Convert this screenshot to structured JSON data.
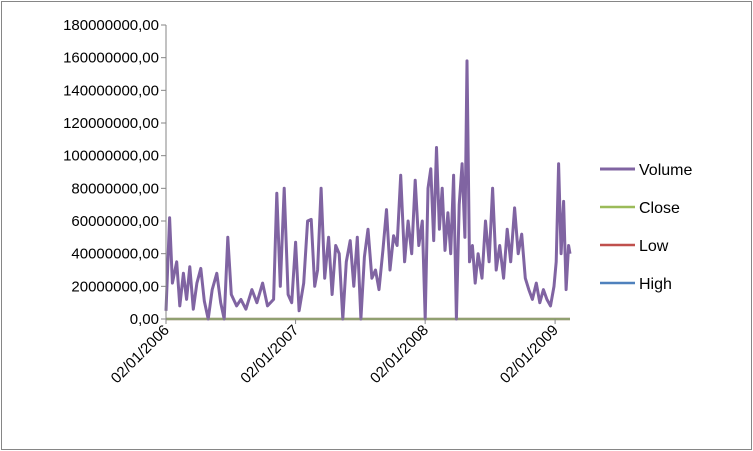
{
  "chart_data": {
    "type": "line",
    "title": "",
    "xlabel": "",
    "ylabel": "",
    "ylim": [
      0,
      180000000
    ],
    "y_ticks": [
      0,
      20000000,
      40000000,
      60000000,
      80000000,
      100000000,
      120000000,
      140000000,
      160000000,
      180000000
    ],
    "y_tick_labels": [
      "0,00",
      "20000000,00",
      "40000000,00",
      "60000000,00",
      "80000000,00",
      "100000000,00",
      "120000000,00",
      "140000000,00",
      "160000000,00",
      "180000000,00"
    ],
    "x_range": [
      "2006-01-02",
      "2009-02-13"
    ],
    "x_ticks": [
      "2006-01-02",
      "2007-01-02",
      "2008-01-02",
      "2009-01-02"
    ],
    "x_tick_labels": [
      "02/01/2006",
      "02/01/2007",
      "02/01/2008",
      "02/01/2009"
    ],
    "grid": {
      "horizontal": false,
      "vertical": false
    },
    "legend_position": "right",
    "series": [
      {
        "name": "Volume",
        "color": "#8064a2",
        "points": [
          [
            "2006-01-02",
            5000000
          ],
          [
            "2006-01-12",
            62000000
          ],
          [
            "2006-01-20",
            22000000
          ],
          [
            "2006-02-01",
            35000000
          ],
          [
            "2006-02-10",
            8000000
          ],
          [
            "2006-02-20",
            28000000
          ],
          [
            "2006-03-01",
            12000000
          ],
          [
            "2006-03-10",
            32000000
          ],
          [
            "2006-03-20",
            6000000
          ],
          [
            "2006-03-30",
            22000000
          ],
          [
            "2006-04-10",
            31000000
          ],
          [
            "2006-04-20",
            11000000
          ],
          [
            "2006-05-01",
            0
          ],
          [
            "2006-05-12",
            18000000
          ],
          [
            "2006-05-25",
            28000000
          ],
          [
            "2006-06-05",
            10000000
          ],
          [
            "2006-06-15",
            0
          ],
          [
            "2006-06-25",
            50000000
          ],
          [
            "2006-07-05",
            15000000
          ],
          [
            "2006-07-20",
            8000000
          ],
          [
            "2006-08-01",
            12000000
          ],
          [
            "2006-08-15",
            6000000
          ],
          [
            "2006-09-01",
            18000000
          ],
          [
            "2006-09-15",
            10000000
          ],
          [
            "2006-10-01",
            22000000
          ],
          [
            "2006-10-15",
            8000000
          ],
          [
            "2006-11-01",
            12000000
          ],
          [
            "2006-11-10",
            77000000
          ],
          [
            "2006-11-20",
            20000000
          ],
          [
            "2006-12-01",
            80000000
          ],
          [
            "2006-12-12",
            15000000
          ],
          [
            "2006-12-22",
            10000000
          ],
          [
            "2007-01-02",
            47000000
          ],
          [
            "2007-01-12",
            5000000
          ],
          [
            "2007-01-25",
            22000000
          ],
          [
            "2007-02-05",
            60000000
          ],
          [
            "2007-02-15",
            61000000
          ],
          [
            "2007-02-25",
            20000000
          ],
          [
            "2007-03-05",
            30000000
          ],
          [
            "2007-03-15",
            80000000
          ],
          [
            "2007-03-25",
            25000000
          ],
          [
            "2007-04-05",
            50000000
          ],
          [
            "2007-04-15",
            15000000
          ],
          [
            "2007-04-25",
            45000000
          ],
          [
            "2007-05-05",
            40000000
          ],
          [
            "2007-05-15",
            0
          ],
          [
            "2007-05-25",
            35000000
          ],
          [
            "2007-06-05",
            48000000
          ],
          [
            "2007-06-15",
            20000000
          ],
          [
            "2007-06-25",
            50000000
          ],
          [
            "2007-07-05",
            0
          ],
          [
            "2007-07-15",
            38000000
          ],
          [
            "2007-07-25",
            55000000
          ],
          [
            "2007-08-05",
            25000000
          ],
          [
            "2007-08-15",
            30000000
          ],
          [
            "2007-08-25",
            18000000
          ],
          [
            "2007-09-05",
            42000000
          ],
          [
            "2007-09-15",
            67000000
          ],
          [
            "2007-09-25",
            30000000
          ],
          [
            "2007-10-05",
            51000000
          ],
          [
            "2007-10-15",
            45000000
          ],
          [
            "2007-10-25",
            88000000
          ],
          [
            "2007-11-05",
            35000000
          ],
          [
            "2007-11-15",
            60000000
          ],
          [
            "2007-11-25",
            40000000
          ],
          [
            "2007-12-05",
            85000000
          ],
          [
            "2007-12-15",
            45000000
          ],
          [
            "2007-12-25",
            60000000
          ],
          [
            "2008-01-02",
            0
          ],
          [
            "2008-01-10",
            80000000
          ],
          [
            "2008-01-18",
            92000000
          ],
          [
            "2008-01-26",
            48000000
          ],
          [
            "2008-02-03",
            105000000
          ],
          [
            "2008-02-11",
            55000000
          ],
          [
            "2008-02-19",
            80000000
          ],
          [
            "2008-02-27",
            42000000
          ],
          [
            "2008-03-06",
            65000000
          ],
          [
            "2008-03-14",
            40000000
          ],
          [
            "2008-03-22",
            88000000
          ],
          [
            "2008-03-30",
            0
          ],
          [
            "2008-04-07",
            70000000
          ],
          [
            "2008-04-15",
            95000000
          ],
          [
            "2008-04-23",
            50000000
          ],
          [
            "2008-04-29",
            158000000
          ],
          [
            "2008-05-06",
            35000000
          ],
          [
            "2008-05-14",
            45000000
          ],
          [
            "2008-05-22",
            22000000
          ],
          [
            "2008-05-30",
            40000000
          ],
          [
            "2008-06-10",
            25000000
          ],
          [
            "2008-06-20",
            60000000
          ],
          [
            "2008-06-30",
            35000000
          ],
          [
            "2008-07-10",
            80000000
          ],
          [
            "2008-07-20",
            30000000
          ],
          [
            "2008-07-30",
            45000000
          ],
          [
            "2008-08-10",
            25000000
          ],
          [
            "2008-08-20",
            55000000
          ],
          [
            "2008-08-30",
            35000000
          ],
          [
            "2008-09-10",
            68000000
          ],
          [
            "2008-09-20",
            40000000
          ],
          [
            "2008-09-30",
            52000000
          ],
          [
            "2008-10-10",
            25000000
          ],
          [
            "2008-10-20",
            18000000
          ],
          [
            "2008-10-30",
            12000000
          ],
          [
            "2008-11-10",
            22000000
          ],
          [
            "2008-11-20",
            10000000
          ],
          [
            "2008-11-30",
            18000000
          ],
          [
            "2008-12-10",
            12000000
          ],
          [
            "2008-12-20",
            8000000
          ],
          [
            "2008-12-30",
            20000000
          ],
          [
            "2009-01-05",
            35000000
          ],
          [
            "2009-01-12",
            95000000
          ],
          [
            "2009-01-19",
            40000000
          ],
          [
            "2009-01-26",
            72000000
          ],
          [
            "2009-02-02",
            18000000
          ],
          [
            "2009-02-09",
            45000000
          ],
          [
            "2009-02-13",
            40000000
          ]
        ]
      },
      {
        "name": "Close",
        "color": "#9bbb59",
        "points": [
          [
            "2006-01-02",
            0
          ],
          [
            "2009-02-13",
            0
          ]
        ]
      },
      {
        "name": "Low",
        "color": "#c0504d",
        "points": [
          [
            "2006-01-02",
            0
          ],
          [
            "2009-02-13",
            0
          ]
        ]
      },
      {
        "name": "High",
        "color": "#4f81bd",
        "points": [
          [
            "2006-01-02",
            0
          ],
          [
            "2009-02-13",
            0
          ]
        ]
      }
    ]
  }
}
